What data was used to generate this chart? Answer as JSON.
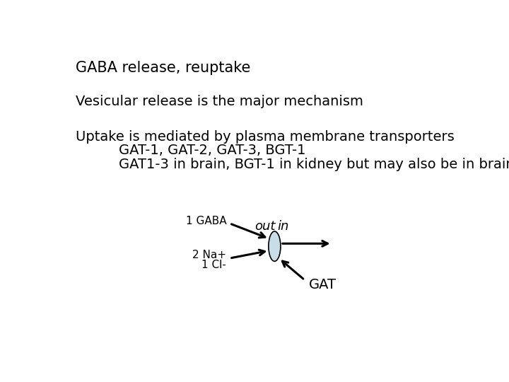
{
  "title": "GABA release, reuptake",
  "line1": "Vesicular release is the major mechanism",
  "line2": "Uptake is mediated by plasma membrane transporters",
  "line3": "GAT-1, GAT-2, GAT-3, BGT-1",
  "line4": "GAT1-3 in brain, BGT-1 in kidney but may also be in brain",
  "label_out": "out",
  "label_in": "in",
  "label_1gaba": "1 GABA",
  "label_2na": "2 Na+",
  "label_1cl": "1 Cl-",
  "label_gat": "GAT",
  "bg_color": "#ffffff",
  "text_color": "#000000",
  "ellipse_facecolor": "#c8dde8",
  "ellipse_edgecolor": "#000000",
  "title_fontsize": 15,
  "body_fontsize": 14,
  "diagram_label_fontsize": 11,
  "italic_fontsize": 13
}
